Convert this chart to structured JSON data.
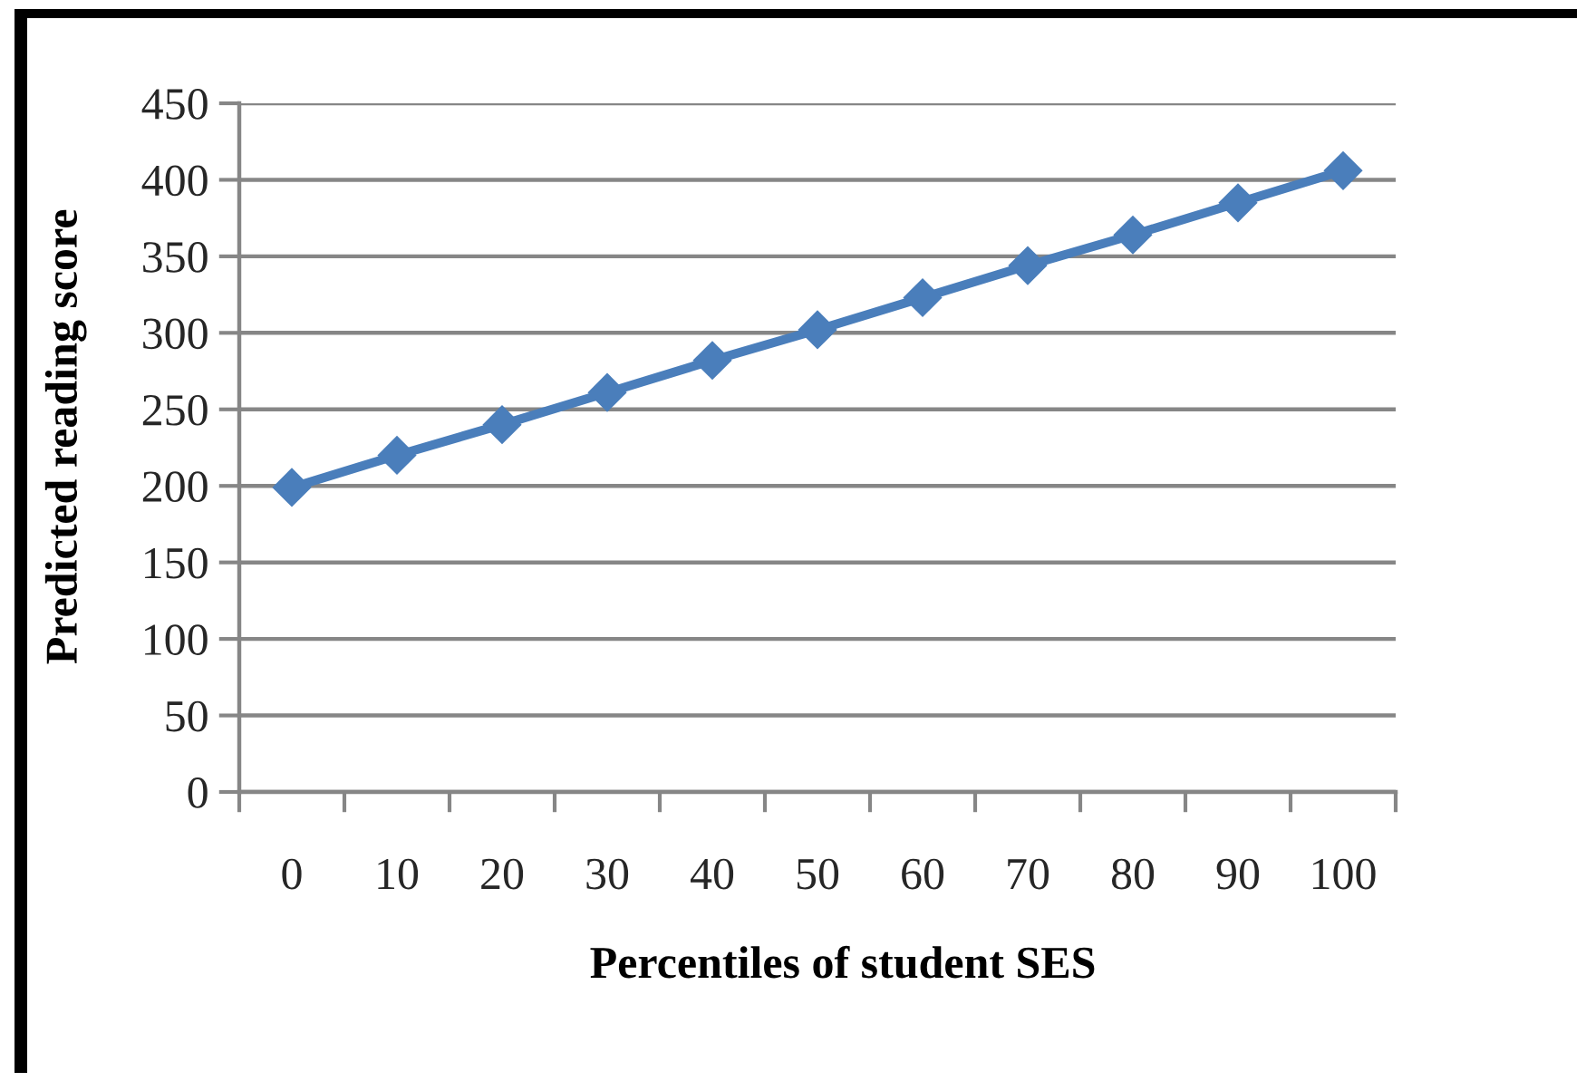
{
  "chart_data": {
    "type": "line",
    "xlabel": "Percentiles of student SES",
    "ylabel": "Predicted reading score",
    "categories": [
      "0",
      "10",
      "20",
      "30",
      "40",
      "50",
      "60",
      "70",
      "80",
      "90",
      "100"
    ],
    "series": [
      {
        "color": "#4a7ebb",
        "values": [
          199,
          220,
          240,
          261,
          282,
          302,
          323,
          344,
          364,
          385,
          406
        ]
      }
    ],
    "ylim": [
      0,
      450
    ],
    "yticks": [
      0,
      50,
      100,
      150,
      200,
      250,
      300,
      350,
      400,
      450
    ],
    "grid": "y",
    "marker": "diamond",
    "line_style": "solid"
  }
}
